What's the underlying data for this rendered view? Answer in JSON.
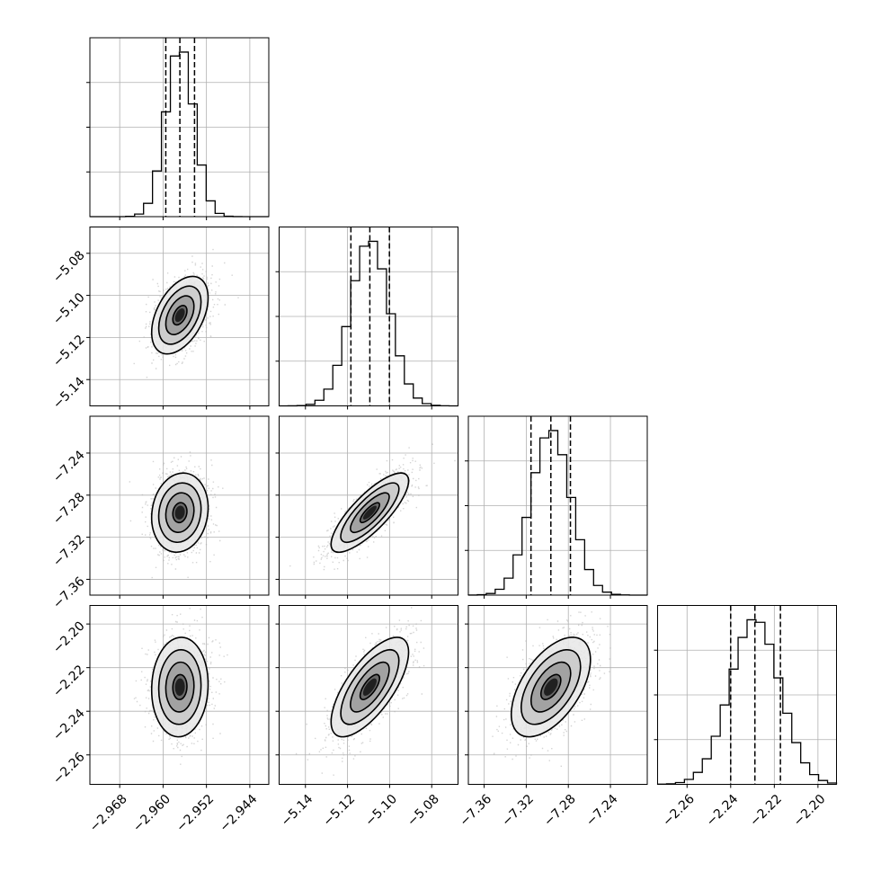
{
  "chart_data": {
    "type": "corner",
    "grid": true,
    "colors": {
      "hist": "#000000",
      "grid": "#b0b0b0",
      "point": "#b0b0b0",
      "density": [
        "#ffffff",
        "#e8e8e8",
        "#c8c8c8",
        "#9a9a9a",
        "#5e5e5e",
        "#202020"
      ]
    },
    "parameters": [
      {
        "range": [
          -2.9735,
          -2.9405
        ],
        "ticks": [
          -2.968,
          -2.96,
          -2.952,
          -2.944
        ],
        "tick_labels": [
          "−2.968",
          "−2.960",
          "−2.952",
          "−2.944"
        ],
        "quantiles": [
          -2.9595,
          -2.9569,
          -2.9542
        ],
        "sigma": 0.0026
      },
      {
        "range": [
          -5.1525,
          -5.0675
        ],
        "ticks": [
          -5.14,
          -5.12,
          -5.1,
          -5.08
        ],
        "tick_labels": [
          "−5.14",
          "−5.12",
          "−5.10",
          "−5.08"
        ],
        "quantiles": [
          -5.1184,
          -5.1094,
          -5.1001
        ],
        "sigma": 0.0092
      },
      {
        "range": [
          -7.375,
          -7.205
        ],
        "ticks": [
          -7.36,
          -7.32,
          -7.28,
          -7.24
        ],
        "tick_labels": [
          "−7.36",
          "−7.32",
          "−7.28",
          "−7.24"
        ],
        "quantiles": [
          -7.3155,
          -7.2966,
          -7.278
        ],
        "sigma": 0.0188
      },
      {
        "range": [
          -2.2735,
          -2.1915
        ],
        "ticks": [
          -2.26,
          -2.24,
          -2.22,
          -2.2
        ],
        "tick_labels": [
          "−2.26",
          "−2.24",
          "−2.22",
          "−2.20"
        ],
        "quantiles": [
          -2.24,
          -2.2289,
          -2.2172
        ],
        "sigma": 0.0114
      }
    ],
    "correlations": [
      {
        "pair": [
          0,
          1
        ],
        "rho": 0.45
      },
      {
        "pair": [
          0,
          2
        ],
        "rho": 0.12
      },
      {
        "pair": [
          0,
          3
        ],
        "rho": 0.05
      },
      {
        "pair": [
          1,
          2
        ],
        "rho": 0.8
      },
      {
        "pair": [
          1,
          3
        ],
        "rho": 0.7
      },
      {
        "pair": [
          2,
          3
        ],
        "rho": 0.55
      }
    ],
    "hist_bins": 20
  }
}
